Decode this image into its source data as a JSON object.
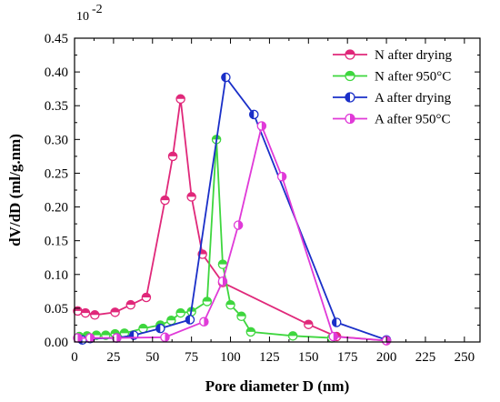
{
  "chart_data": {
    "type": "line",
    "exponent_label": "10",
    "exponent_power": "-2",
    "xlabel": "Pore diameter D (nm)",
    "ylabel": "dV/dD (ml/g.nm)",
    "xlim": [
      0,
      260
    ],
    "ylim": [
      0,
      0.45
    ],
    "x_ticks": [
      "0",
      "25",
      "50",
      "75",
      "100",
      "125",
      "150",
      "175",
      "200",
      "225",
      "250"
    ],
    "y_ticks": [
      "0.00",
      "0.05",
      "0.10",
      "0.15",
      "0.20",
      "0.25",
      "0.30",
      "0.35",
      "0.40",
      "0.45"
    ],
    "legend_position": "top-right",
    "grid": false,
    "series": [
      {
        "name": "N after drying",
        "color": "#e0287a",
        "marker": "circle-half-top",
        "points": [
          [
            2,
            0.046
          ],
          [
            7,
            0.043
          ],
          [
            13,
            0.04
          ],
          [
            26,
            0.044
          ],
          [
            36,
            0.055
          ],
          [
            46,
            0.066
          ],
          [
            58,
            0.21
          ],
          [
            63,
            0.275
          ],
          [
            68,
            0.36
          ],
          [
            75,
            0.215
          ],
          [
            82,
            0.13
          ],
          [
            95,
            0.088
          ],
          [
            150,
            0.026
          ],
          [
            168,
            0.008
          ],
          [
            200,
            0.002
          ]
        ]
      },
      {
        "name": "N after  950°C",
        "color": "#3ed63e",
        "marker": "circle-half-top",
        "points": [
          [
            3,
            0.008
          ],
          [
            8,
            0.009
          ],
          [
            14,
            0.01
          ],
          [
            20,
            0.01
          ],
          [
            26,
            0.012
          ],
          [
            32,
            0.013
          ],
          [
            44,
            0.02
          ],
          [
            55,
            0.025
          ],
          [
            62,
            0.032
          ],
          [
            68,
            0.043
          ],
          [
            75,
            0.045
          ],
          [
            85,
            0.06
          ],
          [
            91,
            0.3
          ],
          [
            95,
            0.115
          ],
          [
            100,
            0.055
          ],
          [
            107,
            0.038
          ],
          [
            113,
            0.015
          ],
          [
            140,
            0.009
          ],
          [
            165,
            0.006
          ]
        ]
      },
      {
        "name": "A after drying",
        "color": "#1a2fc8",
        "marker": "circle-half-left",
        "points": [
          [
            5,
            0.003
          ],
          [
            10,
            0.005
          ],
          [
            27,
            0.006
          ],
          [
            38,
            0.01
          ],
          [
            55,
            0.02
          ],
          [
            74,
            0.033
          ],
          [
            97,
            0.392
          ],
          [
            115,
            0.337
          ],
          [
            168,
            0.029
          ],
          [
            200,
            0.003
          ]
        ]
      },
      {
        "name": "A after 950°C",
        "color": "#e03ad8",
        "marker": "circle-half-right",
        "points": [
          [
            2,
            0.006
          ],
          [
            10,
            0.006
          ],
          [
            27,
            0.006
          ],
          [
            58,
            0.007
          ],
          [
            83,
            0.03
          ],
          [
            95,
            0.09
          ],
          [
            105,
            0.173
          ],
          [
            120,
            0.32
          ],
          [
            133,
            0.245
          ],
          [
            166,
            0.008
          ],
          [
            200,
            0.002
          ]
        ]
      }
    ]
  }
}
